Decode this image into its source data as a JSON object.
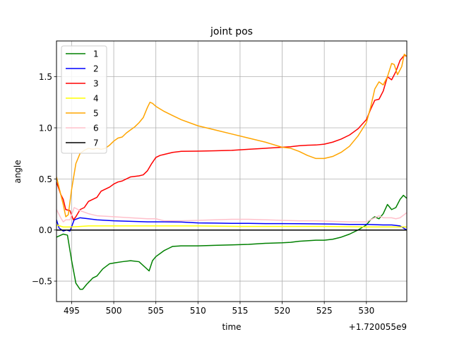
{
  "chart_data": {
    "type": "line",
    "title": "joint pos",
    "xlabel": "time",
    "ylabel": "angle",
    "x_offset_label": "+1.720055e9",
    "xlim": [
      493.2,
      534.8
    ],
    "ylim": [
      -0.7,
      1.85
    ],
    "x_ticks": [
      495,
      500,
      505,
      510,
      515,
      520,
      525,
      530
    ],
    "x_tick_labels": [
      "495",
      "500",
      "505",
      "510",
      "515",
      "520",
      "525",
      "530"
    ],
    "y_ticks": [
      -0.5,
      0.0,
      0.5,
      1.0,
      1.5
    ],
    "y_tick_labels": [
      "−0.5",
      "0.0",
      "0.5",
      "1.0",
      "1.5"
    ],
    "grid": true,
    "legend_position": "top-left",
    "series": [
      {
        "name": "1",
        "color": "#008000",
        "points": [
          [
            493.2,
            -0.07
          ],
          [
            494,
            -0.04
          ],
          [
            494.5,
            -0.05
          ],
          [
            495,
            -0.3
          ],
          [
            495.5,
            -0.52
          ],
          [
            496,
            -0.58
          ],
          [
            496.3,
            -0.58
          ],
          [
            496.8,
            -0.53
          ],
          [
            497.5,
            -0.47
          ],
          [
            498,
            -0.45
          ],
          [
            498.7,
            -0.38
          ],
          [
            499.5,
            -0.33
          ],
          [
            500.2,
            -0.32
          ],
          [
            501,
            -0.31
          ],
          [
            502,
            -0.3
          ],
          [
            503,
            -0.31
          ],
          [
            503.8,
            -0.37
          ],
          [
            504.2,
            -0.4
          ],
          [
            504.6,
            -0.3
          ],
          [
            505,
            -0.26
          ],
          [
            505.5,
            -0.23
          ],
          [
            506,
            -0.2
          ],
          [
            506.5,
            -0.18
          ],
          [
            507,
            -0.16
          ],
          [
            508,
            -0.155
          ],
          [
            510,
            -0.155
          ],
          [
            512,
            -0.15
          ],
          [
            514,
            -0.145
          ],
          [
            516,
            -0.14
          ],
          [
            518,
            -0.13
          ],
          [
            520,
            -0.125
          ],
          [
            521,
            -0.12
          ],
          [
            522,
            -0.11
          ],
          [
            523,
            -0.105
          ],
          [
            524,
            -0.1
          ],
          [
            525,
            -0.1
          ],
          [
            526,
            -0.09
          ],
          [
            527,
            -0.07
          ],
          [
            528,
            -0.04
          ],
          [
            529,
            0.0
          ],
          [
            530,
            0.05
          ],
          [
            530.5,
            0.1
          ],
          [
            531,
            0.13
          ],
          [
            531.5,
            0.11
          ],
          [
            532,
            0.16
          ],
          [
            532.5,
            0.25
          ],
          [
            533,
            0.2
          ],
          [
            533.5,
            0.22
          ],
          [
            534,
            0.3
          ],
          [
            534.4,
            0.34
          ],
          [
            534.8,
            0.31
          ]
        ]
      },
      {
        "name": "2",
        "color": "#0000ff",
        "points": [
          [
            493.2,
            0.1
          ],
          [
            493.5,
            0.02
          ],
          [
            494,
            -0.01
          ],
          [
            494.4,
            0.0
          ],
          [
            494.8,
            -0.01
          ],
          [
            495.3,
            0.1
          ],
          [
            496,
            0.12
          ],
          [
            497,
            0.11
          ],
          [
            498,
            0.1
          ],
          [
            500,
            0.09
          ],
          [
            502,
            0.085
          ],
          [
            504,
            0.08
          ],
          [
            506,
            0.08
          ],
          [
            508,
            0.078
          ],
          [
            510,
            0.07
          ],
          [
            512,
            0.068
          ],
          [
            514,
            0.065
          ],
          [
            516,
            0.065
          ],
          [
            518,
            0.063
          ],
          [
            520,
            0.063
          ],
          [
            522,
            0.062
          ],
          [
            524,
            0.06
          ],
          [
            526,
            0.058
          ],
          [
            528,
            0.055
          ],
          [
            530,
            0.055
          ],
          [
            532,
            0.05
          ],
          [
            533,
            0.05
          ],
          [
            534,
            0.04
          ],
          [
            534.8,
            0.0
          ]
        ]
      },
      {
        "name": "3",
        "color": "#ff0000",
        "points": [
          [
            493.2,
            0.47
          ],
          [
            493.7,
            0.35
          ],
          [
            494,
            0.3
          ],
          [
            494.3,
            0.2
          ],
          [
            494.8,
            0.19
          ],
          [
            495.2,
            0.1
          ],
          [
            495.5,
            0.13
          ],
          [
            496,
            0.2
          ],
          [
            496.5,
            0.22
          ],
          [
            497,
            0.28
          ],
          [
            497.5,
            0.3
          ],
          [
            498,
            0.32
          ],
          [
            498.5,
            0.38
          ],
          [
            499,
            0.4
          ],
          [
            499.5,
            0.42
          ],
          [
            500,
            0.45
          ],
          [
            500.5,
            0.47
          ],
          [
            501,
            0.48
          ],
          [
            501.5,
            0.5
          ],
          [
            502,
            0.52
          ],
          [
            503,
            0.53
          ],
          [
            503.5,
            0.54
          ],
          [
            504,
            0.58
          ],
          [
            504.5,
            0.65
          ],
          [
            505,
            0.71
          ],
          [
            505.5,
            0.73
          ],
          [
            506,
            0.74
          ],
          [
            507,
            0.76
          ],
          [
            508,
            0.77
          ],
          [
            510,
            0.772
          ],
          [
            512,
            0.775
          ],
          [
            514,
            0.78
          ],
          [
            516,
            0.79
          ],
          [
            518,
            0.8
          ],
          [
            520,
            0.81
          ],
          [
            521,
            0.815
          ],
          [
            522,
            0.825
          ],
          [
            523,
            0.83
          ],
          [
            524,
            0.832
          ],
          [
            525,
            0.84
          ],
          [
            526,
            0.86
          ],
          [
            527,
            0.89
          ],
          [
            528,
            0.93
          ],
          [
            529,
            0.99
          ],
          [
            530,
            1.08
          ],
          [
            530.5,
            1.18
          ],
          [
            531,
            1.27
          ],
          [
            531.5,
            1.28
          ],
          [
            532,
            1.36
          ],
          [
            532.5,
            1.5
          ],
          [
            533,
            1.47
          ],
          [
            533.5,
            1.55
          ],
          [
            534,
            1.66
          ],
          [
            534.5,
            1.71
          ],
          [
            534.8,
            1.7
          ]
        ]
      },
      {
        "name": "4",
        "color": "#ffff00",
        "points": [
          [
            493.2,
            0.05
          ],
          [
            494,
            0.03
          ],
          [
            495,
            0.03
          ],
          [
            497,
            0.04
          ],
          [
            500,
            0.04
          ],
          [
            505,
            0.04
          ],
          [
            510,
            0.04
          ],
          [
            515,
            0.035
          ],
          [
            520,
            0.035
          ],
          [
            525,
            0.035
          ],
          [
            530,
            0.03
          ],
          [
            534.8,
            0.03
          ]
        ]
      },
      {
        "name": "5",
        "color": "#ffa500",
        "points": [
          [
            493.2,
            0.52
          ],
          [
            493.7,
            0.35
          ],
          [
            494,
            0.25
          ],
          [
            494.3,
            0.13
          ],
          [
            494.6,
            0.15
          ],
          [
            495,
            0.4
          ],
          [
            495.5,
            0.65
          ],
          [
            496,
            0.75
          ],
          [
            496.5,
            0.78
          ],
          [
            497,
            0.8
          ],
          [
            497.5,
            0.79
          ],
          [
            498,
            0.8
          ],
          [
            498.5,
            0.79
          ],
          [
            499,
            0.8
          ],
          [
            499.5,
            0.83
          ],
          [
            500,
            0.87
          ],
          [
            500.5,
            0.9
          ],
          [
            501,
            0.91
          ],
          [
            501.5,
            0.95
          ],
          [
            502,
            0.98
          ],
          [
            502.5,
            1.01
          ],
          [
            503,
            1.05
          ],
          [
            503.5,
            1.1
          ],
          [
            504,
            1.2
          ],
          [
            504.3,
            1.25
          ],
          [
            504.6,
            1.24
          ],
          [
            505,
            1.21
          ],
          [
            506,
            1.16
          ],
          [
            507,
            1.12
          ],
          [
            508,
            1.08
          ],
          [
            510,
            1.02
          ],
          [
            512,
            0.98
          ],
          [
            514,
            0.94
          ],
          [
            516,
            0.9
          ],
          [
            518,
            0.86
          ],
          [
            520,
            0.81
          ],
          [
            521,
            0.8
          ],
          [
            522,
            0.77
          ],
          [
            523,
            0.73
          ],
          [
            524,
            0.7
          ],
          [
            525,
            0.7
          ],
          [
            526,
            0.72
          ],
          [
            527,
            0.76
          ],
          [
            528,
            0.82
          ],
          [
            529,
            0.92
          ],
          [
            530,
            1.05
          ],
          [
            530.5,
            1.2
          ],
          [
            531,
            1.38
          ],
          [
            531.5,
            1.45
          ],
          [
            532,
            1.42
          ],
          [
            532.5,
            1.5
          ],
          [
            533,
            1.63
          ],
          [
            533.3,
            1.62
          ],
          [
            533.7,
            1.52
          ],
          [
            534.2,
            1.6
          ],
          [
            534.5,
            1.72
          ],
          [
            534.8,
            1.7
          ]
        ]
      },
      {
        "name": "6",
        "color": "#ffc0cb",
        "points": [
          [
            493.2,
            0.2
          ],
          [
            493.7,
            0.12
          ],
          [
            494,
            0.08
          ],
          [
            494.3,
            0.1
          ],
          [
            494.8,
            0.1
          ],
          [
            495.3,
            0.22
          ],
          [
            496,
            0.19
          ],
          [
            497,
            0.16
          ],
          [
            498,
            0.14
          ],
          [
            500,
            0.13
          ],
          [
            502,
            0.12
          ],
          [
            504,
            0.11
          ],
          [
            505,
            0.11
          ],
          [
            506,
            0.09
          ],
          [
            508,
            0.09
          ],
          [
            510,
            0.095
          ],
          [
            512,
            0.1
          ],
          [
            514,
            0.105
          ],
          [
            516,
            0.105
          ],
          [
            518,
            0.1
          ],
          [
            520,
            0.095
          ],
          [
            522,
            0.09
          ],
          [
            524,
            0.09
          ],
          [
            526,
            0.085
          ],
          [
            528,
            0.08
          ],
          [
            530,
            0.08
          ],
          [
            531,
            0.12
          ],
          [
            531.5,
            0.14
          ],
          [
            532,
            0.12
          ],
          [
            533,
            0.12
          ],
          [
            533.5,
            0.11
          ],
          [
            534,
            0.12
          ],
          [
            534.8,
            0.17
          ]
        ]
      },
      {
        "name": "7",
        "color": "#000000",
        "points": [
          [
            493.2,
            0.0
          ],
          [
            534.8,
            0.0
          ]
        ]
      }
    ]
  }
}
